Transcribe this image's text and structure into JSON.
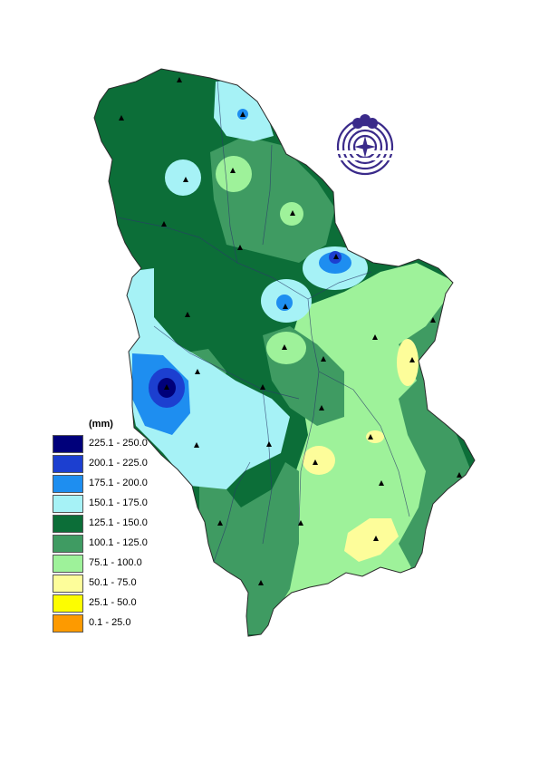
{
  "map": {
    "palette": {
      "c225": "#00007a",
      "c200": "#1c3fd0",
      "c175": "#1e8ef0",
      "c150": "#a6f2f6",
      "c125": "#0c6e38",
      "c100": "#3f9b62",
      "c75": "#9ef29a",
      "c50": "#fdfd9a",
      "c25": "#fdfd00",
      "c0": "#fd9a00"
    },
    "station_icon": "triangle-icon",
    "logo_icon": "hydrometeorological-service-logo-icon"
  },
  "legend": {
    "unit": "(mm)",
    "items": [
      {
        "label": "225.1 - 250.0",
        "color": "#00007a"
      },
      {
        "label": "200.1 - 225.0",
        "color": "#1c3fd0"
      },
      {
        "label": "175.1 - 200.0",
        "color": "#1e8ef0"
      },
      {
        "label": "150.1 - 175.0",
        "color": "#a6f2f6"
      },
      {
        "label": "125.1 - 150.0",
        "color": "#0c6e38"
      },
      {
        "label": "100.1 - 125.0",
        "color": "#3f9b62"
      },
      {
        "label": "75.1 - 100.0",
        "color": "#9ef29a"
      },
      {
        "label": "50.1 - 75.0",
        "color": "#fdfd9a"
      },
      {
        "label": "25.1 - 50.0",
        "color": "#fdfd00"
      },
      {
        "label": "0.1 - 25.0",
        "color": "#fd9a00"
      }
    ]
  }
}
